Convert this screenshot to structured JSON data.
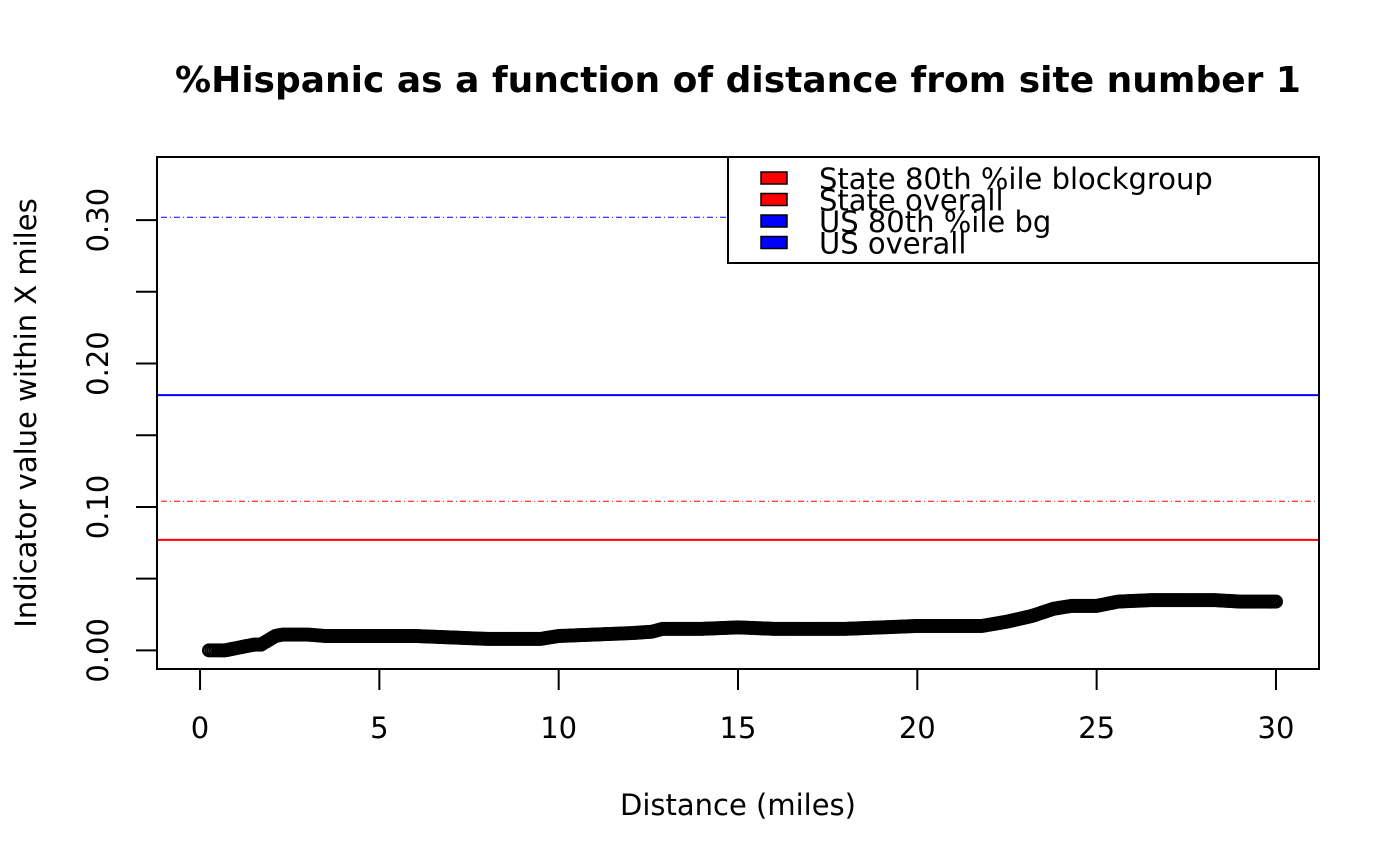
{
  "chart_data": {
    "type": "scatter",
    "title": "%Hispanic as a function of distance from site number 1",
    "xlabel": "Distance (miles)",
    "ylabel": "Indicator value within X miles",
    "xlim": [
      -1.2,
      31.2
    ],
    "ylim": [
      -0.013,
      0.344
    ],
    "x_ticks": [
      0,
      5,
      10,
      15,
      20,
      25,
      30
    ],
    "x_tick_labels": [
      "0",
      "5",
      "10",
      "15",
      "20",
      "25",
      "30"
    ],
    "y_ticks": [
      0.0,
      0.05,
      0.1,
      0.15,
      0.2,
      0.25,
      0.3
    ],
    "y_tick_labels": [
      "0.00",
      "",
      "0.10",
      "",
      "0.20",
      "",
      "0.30"
    ],
    "grid": false,
    "legend_position": "top-right",
    "legend": [
      {
        "label": "State 80th %ile blockgroup",
        "color": "#ff0000"
      },
      {
        "label": "State overall",
        "color": "#ff0000"
      },
      {
        "label": "US 80th %ile bg",
        "color": "#0000ff"
      },
      {
        "label": "US overall",
        "color": "#0000ff"
      }
    ],
    "reference_lines": [
      {
        "name": "State 80th %ile blockgroup",
        "y": 0.104,
        "color": "#ff0000",
        "style": "dotdash"
      },
      {
        "name": "State overall",
        "y": 0.077,
        "color": "#ff0000",
        "style": "solid"
      },
      {
        "name": "US 80th %ile bg",
        "y": 0.302,
        "color": "#0000ff",
        "style": "dotdash"
      },
      {
        "name": "US overall",
        "y": 0.178,
        "color": "#0000ff",
        "style": "solid"
      }
    ],
    "series": [
      {
        "marker": "open-circle",
        "color": "#000000",
        "points": [
          [
            0.25,
            0.0
          ],
          [
            0.5,
            0.0
          ],
          [
            0.7,
            0.0
          ],
          [
            0.9,
            0.001
          ],
          [
            1.1,
            0.002
          ],
          [
            1.3,
            0.003
          ],
          [
            1.5,
            0.004
          ],
          [
            1.7,
            0.004
          ],
          [
            1.9,
            0.007
          ],
          [
            2.1,
            0.01
          ],
          [
            2.3,
            0.011
          ],
          [
            2.6,
            0.011
          ],
          [
            3.0,
            0.011
          ],
          [
            3.5,
            0.01
          ],
          [
            4.0,
            0.01
          ],
          [
            5.0,
            0.01
          ],
          [
            6.0,
            0.01
          ],
          [
            7.0,
            0.009
          ],
          [
            8.0,
            0.008
          ],
          [
            9.0,
            0.008
          ],
          [
            9.5,
            0.008
          ],
          [
            10.0,
            0.01
          ],
          [
            11.0,
            0.011
          ],
          [
            12.0,
            0.012
          ],
          [
            12.6,
            0.013
          ],
          [
            12.9,
            0.015
          ],
          [
            14.0,
            0.015
          ],
          [
            15.0,
            0.016
          ],
          [
            16.0,
            0.015
          ],
          [
            17.0,
            0.015
          ],
          [
            18.0,
            0.015
          ],
          [
            19.0,
            0.016
          ],
          [
            20.0,
            0.017
          ],
          [
            21.0,
            0.017
          ],
          [
            21.8,
            0.017
          ],
          [
            22.5,
            0.02
          ],
          [
            23.2,
            0.024
          ],
          [
            23.8,
            0.029
          ],
          [
            24.3,
            0.031
          ],
          [
            25.0,
            0.031
          ],
          [
            25.6,
            0.034
          ],
          [
            26.5,
            0.035
          ],
          [
            27.5,
            0.035
          ],
          [
            28.3,
            0.035
          ],
          [
            29.0,
            0.034
          ],
          [
            30.0,
            0.034
          ]
        ]
      }
    ]
  }
}
